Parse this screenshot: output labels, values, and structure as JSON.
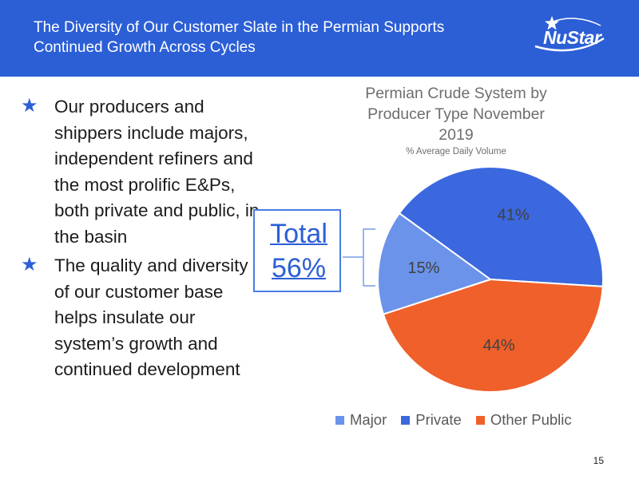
{
  "header": {
    "title": "The Diversity of Our Customer Slate in the Permian Supports Continued Growth Across Cycles",
    "logo_text": "NuStar",
    "background_color": "#2c5fd6"
  },
  "bullets": [
    "Our producers and shippers include majors, independent refiners and the most prolific E&Ps, both private and public, in the basin",
    "The quality and diversity of our customer base helps insulate our system’s growth and continued development"
  ],
  "bullet_icon": "star-icon",
  "callout": {
    "text": "Total 56%"
  },
  "chart_data": {
    "type": "pie",
    "title": "Permian Crude System by Producer Type November 2019",
    "subtitle": "% Average Daily Volume",
    "slices": [
      {
        "label": "Private",
        "value": 41,
        "display": "41%",
        "color": "#3b68de"
      },
      {
        "label": "Other Public",
        "value": 44,
        "display": "44%",
        "color": "#f0602a"
      },
      {
        "label": "Major",
        "value": 15,
        "display": "15%",
        "color": "#6b93ea"
      }
    ],
    "legend": [
      {
        "label": "Major",
        "color": "#6b93ea"
      },
      {
        "label": "Private",
        "color": "#3b68de"
      },
      {
        "label": "Other Public",
        "color": "#f0602a"
      }
    ],
    "legend_position": "bottom"
  },
  "page_number": "15"
}
